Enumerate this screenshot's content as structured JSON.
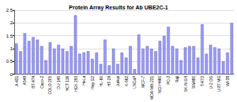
{
  "chart_data": {
    "type": "bar",
    "title": "Protein Array Results for Ab UBE2C-1",
    "categories": [
      "A-431",
      null,
      "A549",
      null,
      "BT-474",
      null,
      "Caco-2",
      null,
      "COLO 205",
      null,
      "DU 145",
      null,
      "HCT 116",
      null,
      "HEK 293",
      null,
      "HeLa",
      null,
      "Hep G2",
      null,
      "HL-60",
      null,
      "HT-29",
      null,
      "Jurkat",
      null,
      "K-562",
      null,
      "LNCaP",
      null,
      "MCF-7",
      null,
      "MDA-MB-231",
      null,
      "NCI-H460",
      null,
      "PC-3",
      null,
      "Raji",
      null,
      "SK-N-SH",
      null,
      "SW480",
      null,
      "T-47D",
      null,
      "U-2 OS",
      null,
      "U-87 MG",
      null,
      "WI-38",
      null
    ],
    "values": [
      1.2,
      0.9,
      1.6,
      1.3,
      1.45,
      1.35,
      1.1,
      0.55,
      1.25,
      1.0,
      1.15,
      1.0,
      0.9,
      1.1,
      2.3,
      0.8,
      0.85,
      0.9,
      0.6,
      0.85,
      0.4,
      1.35,
      0.35,
      1.0,
      0.4,
      0.85,
      0.65,
      1.1,
      0.2,
      1.55,
      1.0,
      1.1,
      1.0,
      0.9,
      1.3,
      1.5,
      1.85,
      1.1,
      1.0,
      0.55,
      1.05,
      1.1,
      1.1,
      0.65,
      1.95,
      0.8,
      1.15,
      1.05,
      1.0,
      0.5,
      0.85,
      2.0
    ],
    "color": "#9999ff",
    "ylim": [
      0,
      2.5
    ],
    "yticks": [
      0,
      0.5,
      1,
      1.5,
      2,
      2.5
    ],
    "grid": true
  }
}
